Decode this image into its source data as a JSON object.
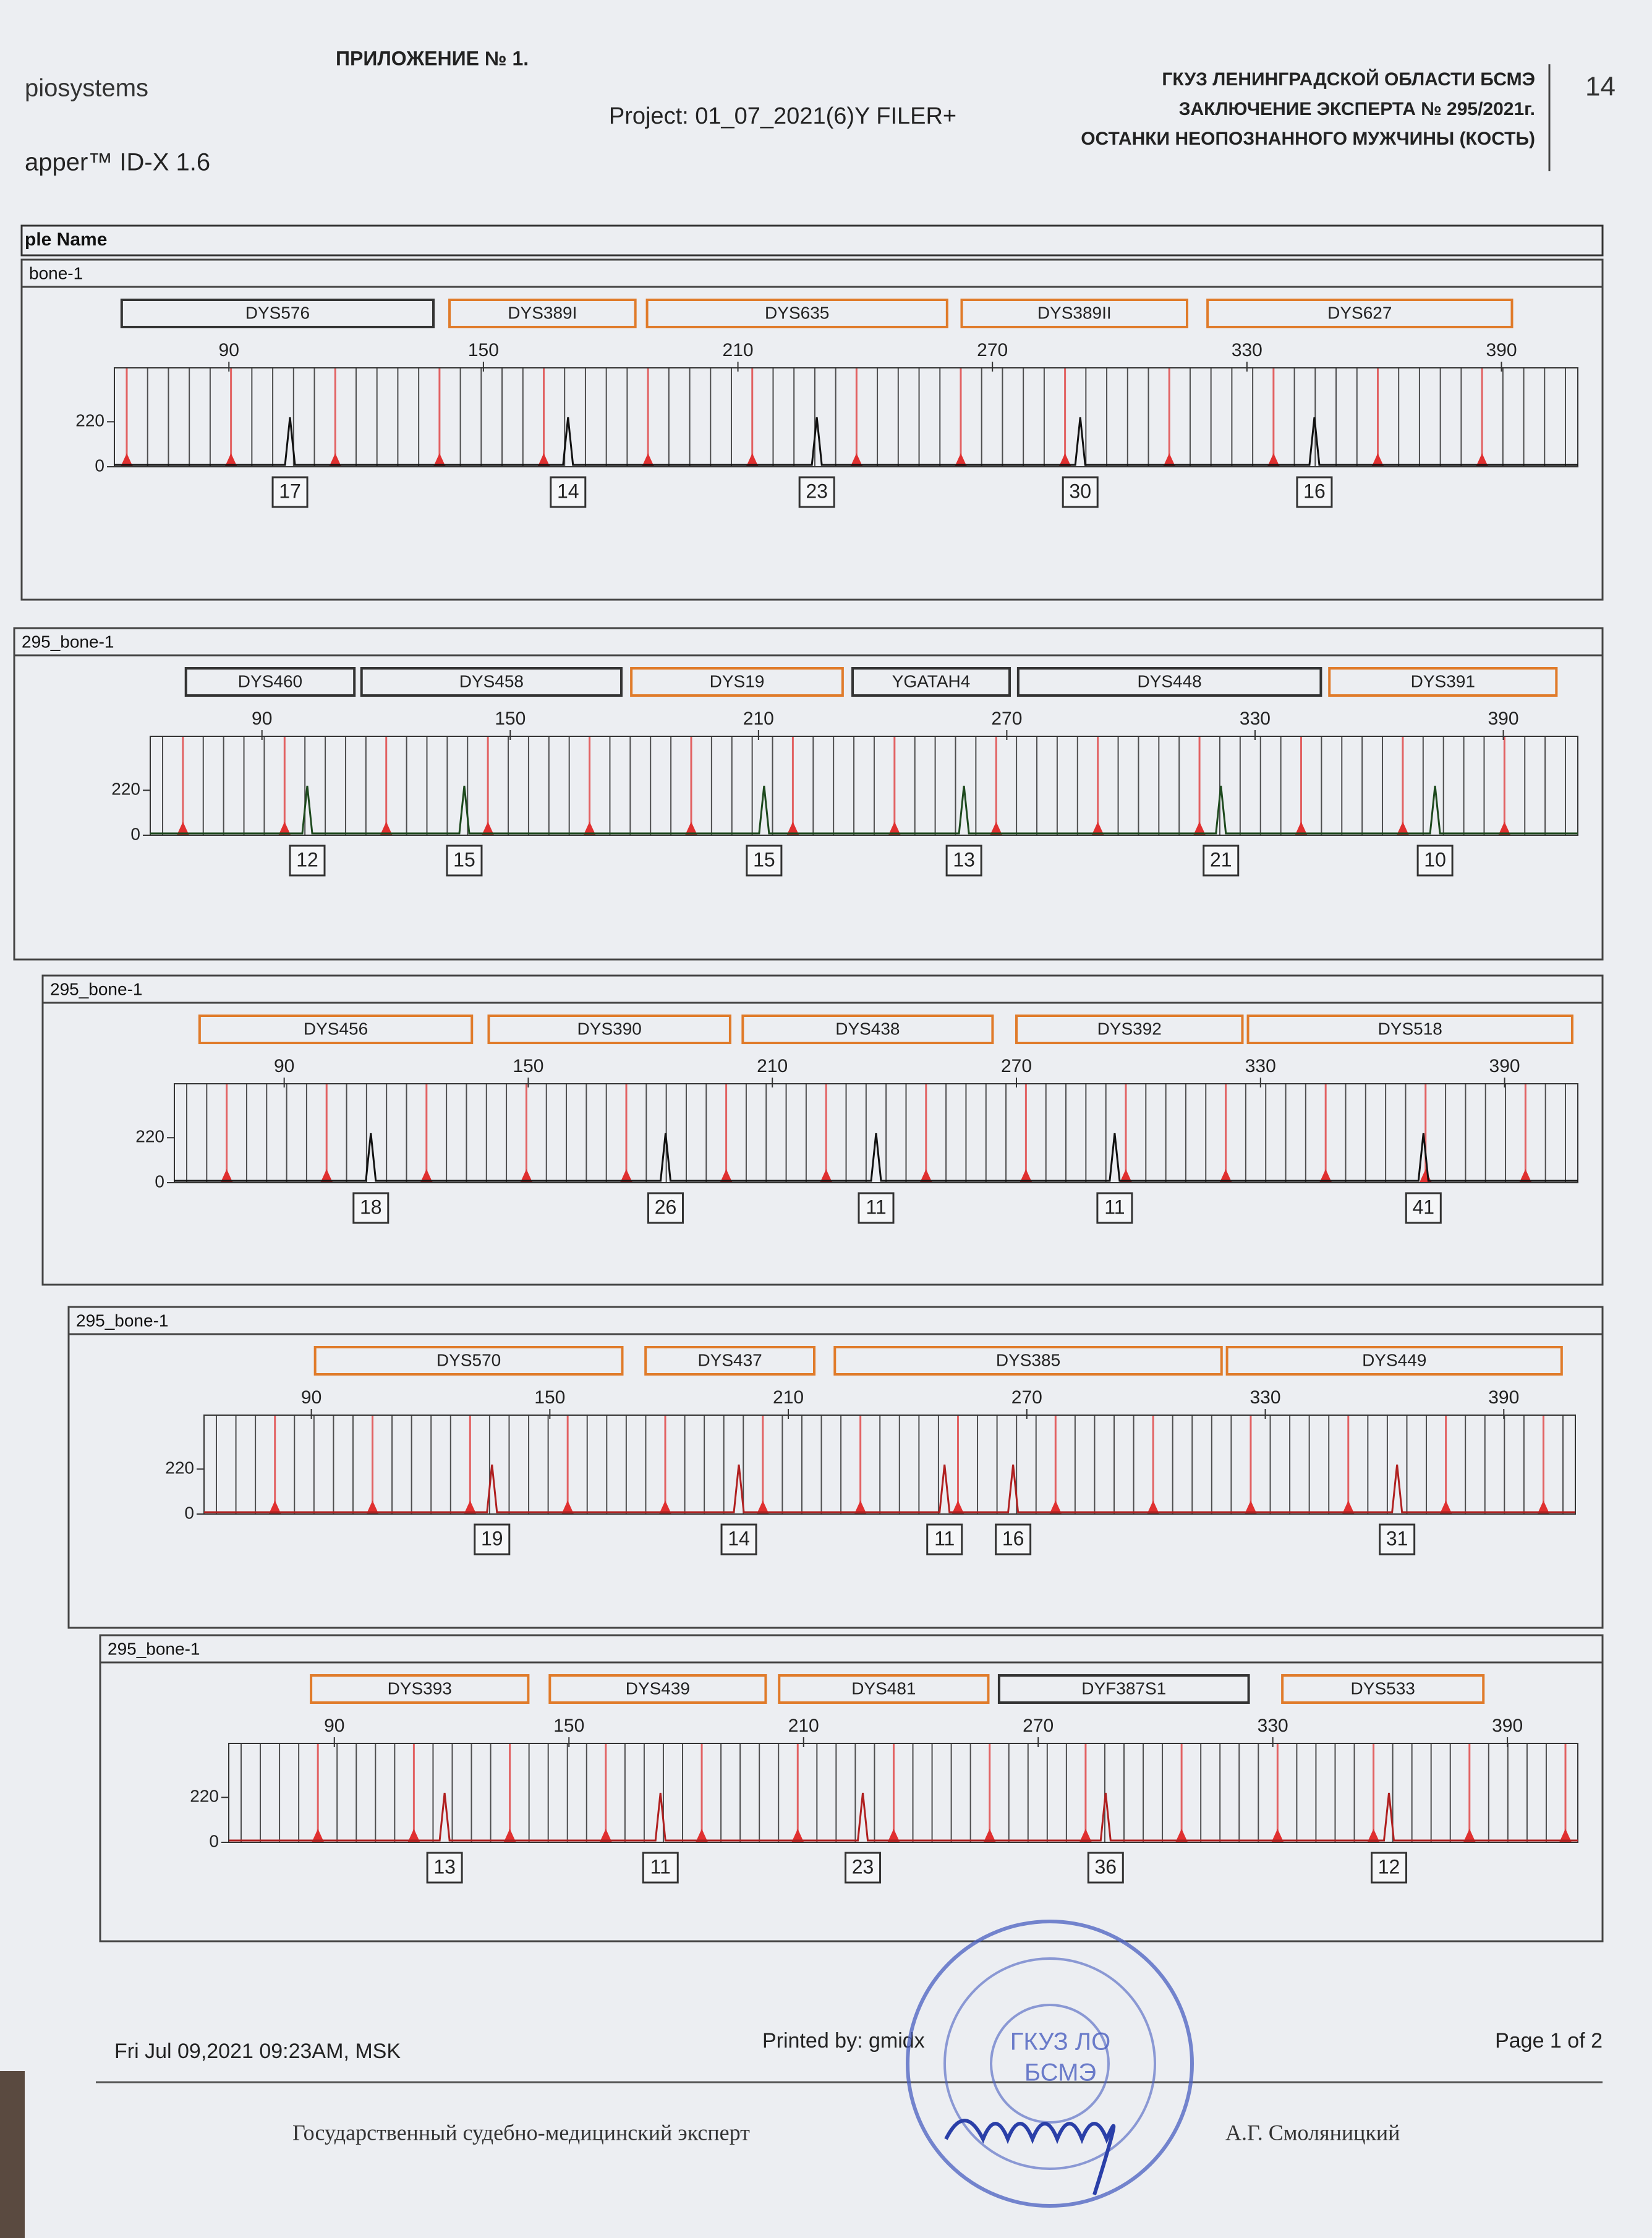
{
  "header": {
    "appendix": "ПРИЛОЖЕНИЕ № 1.",
    "company": "piosystems",
    "software": "apper™ ID-X  1.6",
    "project": "Project: 01_07_2021(6)Y FILER+",
    "org_lines": [
      "ГКУЗ ЛЕНИНГРАДСКОЙ ОБЛАСТИ БСМЭ",
      "ЗАКЛЮЧЕНИЕ ЭКСПЕРТА № 295/2021г.",
      "ОСТАНКИ НЕОПОЗНАННОГО МУЖЧИНЫ (КОСТЬ)"
    ],
    "page_number": "14"
  },
  "table_header": "ple Name",
  "panels": [
    {
      "sample": "bone-1",
      "markers": [
        {
          "name": "DYS576",
          "color": "#333333"
        },
        {
          "name": "DYS389I",
          "color": "#e07b2a"
        },
        {
          "name": "DYS635",
          "color": "#e07b2a"
        },
        {
          "name": "DYS389II",
          "color": "#e07b2a"
        },
        {
          "name": "DYS627",
          "color": "#e07b2a"
        }
      ],
      "x_ticks": [
        90,
        150,
        210,
        270,
        330,
        390
      ],
      "y_ticks": [
        0,
        220
      ],
      "alleles": [
        17,
        14,
        23,
        30,
        16
      ]
    },
    {
      "sample": "295_bone-1",
      "markers": [
        {
          "name": "DYS460",
          "color": "#333333"
        },
        {
          "name": "DYS458",
          "color": "#333333"
        },
        {
          "name": "DYS19",
          "color": "#e07b2a"
        },
        {
          "name": "YGATAH4",
          "color": "#333333"
        },
        {
          "name": "DYS448",
          "color": "#333333"
        },
        {
          "name": "DYS391",
          "color": "#e07b2a"
        }
      ],
      "x_ticks": [
        90,
        150,
        210,
        270,
        330,
        390
      ],
      "y_ticks": [
        0,
        220
      ],
      "alleles": [
        12,
        15,
        15,
        13,
        21,
        10
      ]
    },
    {
      "sample": "295_bone-1",
      "markers": [
        {
          "name": "DYS456",
          "color": "#e07b2a"
        },
        {
          "name": "DYS390",
          "color": "#e07b2a"
        },
        {
          "name": "DYS438",
          "color": "#e07b2a"
        },
        {
          "name": "DYS392",
          "color": "#e07b2a"
        },
        {
          "name": "DYS518",
          "color": "#e07b2a"
        }
      ],
      "x_ticks": [
        90,
        150,
        210,
        270,
        330,
        390
      ],
      "y_ticks": [
        0,
        220
      ],
      "alleles": [
        18,
        26,
        11,
        11,
        41
      ]
    },
    {
      "sample": "295_bone-1",
      "markers": [
        {
          "name": "DYS570",
          "color": "#e07b2a"
        },
        {
          "name": "DYS437",
          "color": "#e07b2a"
        },
        {
          "name": "DYS385",
          "color": "#e07b2a"
        },
        {
          "name": "DYS449",
          "color": "#e07b2a"
        }
      ],
      "x_ticks": [
        90,
        150,
        210,
        270,
        330,
        390
      ],
      "y_ticks": [
        0,
        220
      ],
      "alleles": [
        19,
        14,
        11,
        16,
        31
      ]
    },
    {
      "sample": "295_bone-1",
      "markers": [
        {
          "name": "DYS393",
          "color": "#e07b2a"
        },
        {
          "name": "DYS439",
          "color": "#e07b2a"
        },
        {
          "name": "DYS481",
          "color": "#e07b2a"
        },
        {
          "name": "DYF387S1",
          "color": "#333333"
        },
        {
          "name": "DYS533",
          "color": "#e07b2a"
        }
      ],
      "x_ticks": [
        90,
        150,
        210,
        270,
        330,
        390
      ],
      "y_ticks": [
        0,
        220
      ],
      "alleles": [
        13,
        11,
        23,
        36,
        12
      ]
    }
  ],
  "footer": {
    "date": "Fri Jul 09,2021 09:23AM, MSK",
    "printed_by": "Printed by: gmidx",
    "page": "Page 1 of 2"
  },
  "stamp": [
    "ГКУЗ ЛО",
    "БСМЭ"
  ],
  "signature": {
    "title": "Государственный судебно-медицинский эксперт",
    "name": "А.Г. Смоляницкий"
  }
}
